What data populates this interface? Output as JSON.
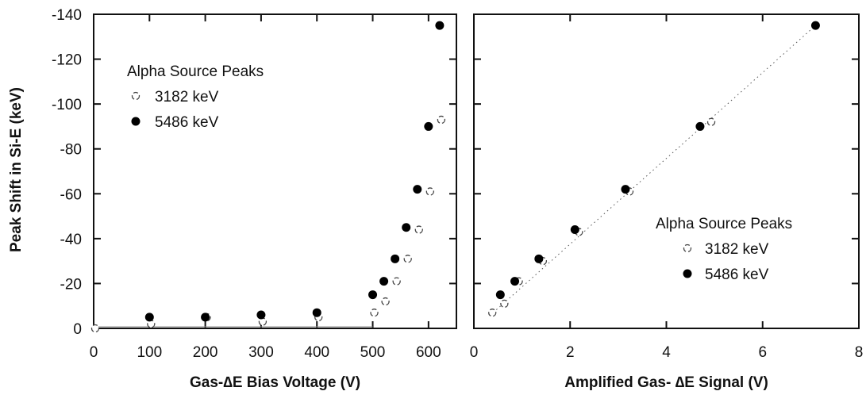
{
  "figure": {
    "ylabel": "Peak Shift in Si-E (keV)"
  },
  "chart_data": [
    {
      "type": "scatter",
      "title": "",
      "xlabel": "Gas-∆E Bias Voltage (V)",
      "ylabel": "Peak Shift in Si-E (keV)",
      "xlim": [
        0,
        650
      ],
      "ylim": [
        0,
        -140
      ],
      "y_axis_inverted": true,
      "x_ticks": [
        "0",
        "100",
        "200",
        "300",
        "400",
        "500",
        "600"
      ],
      "x_tick_values": [
        0,
        100,
        200,
        300,
        400,
        500,
        600
      ],
      "y_ticks": [
        "0",
        "-20",
        "-40",
        "-60",
        "-80",
        "-100",
        "-120",
        "-140"
      ],
      "y_tick_values": [
        0,
        -20,
        -40,
        -60,
        -80,
        -100,
        -120,
        -140
      ],
      "legend": {
        "title": "Alpha Source Peaks",
        "position": "top-left",
        "entries": [
          "3182 keV",
          "5486 keV"
        ]
      },
      "series": [
        {
          "name": "3182 keV",
          "marker": "open-circle",
          "color": "#222222",
          "points": [
            {
              "x": 0,
              "y": 0
            },
            {
              "x": 100,
              "y": -2
            },
            {
              "x": 200,
              "y": -5
            },
            {
              "x": 300,
              "y": -3
            },
            {
              "x": 400,
              "y": -5
            },
            {
              "x": 500,
              "y": -7
            },
            {
              "x": 520,
              "y": -12
            },
            {
              "x": 540,
              "y": -21
            },
            {
              "x": 560,
              "y": -31
            },
            {
              "x": 580,
              "y": -44
            },
            {
              "x": 600,
              "y": -61
            },
            {
              "x": 620,
              "y": -93
            }
          ]
        },
        {
          "name": "5486 keV",
          "marker": "filled-circle",
          "color": "#000000",
          "points": [
            {
              "x": 100,
              "y": -5
            },
            {
              "x": 200,
              "y": -5
            },
            {
              "x": 300,
              "y": -6
            },
            {
              "x": 400,
              "y": -7
            },
            {
              "x": 500,
              "y": -15
            },
            {
              "x": 520,
              "y": -21
            },
            {
              "x": 540,
              "y": -31
            },
            {
              "x": 560,
              "y": -45
            },
            {
              "x": 580,
              "y": -62
            },
            {
              "x": 600,
              "y": -90
            },
            {
              "x": 620,
              "y": -135
            }
          ]
        }
      ]
    },
    {
      "type": "scatter",
      "title": "",
      "xlabel": "Amplified Gas- ∆E Signal (V)",
      "ylabel": "",
      "xlim": [
        0,
        8
      ],
      "ylim": [
        0,
        -140
      ],
      "y_axis_inverted": true,
      "x_ticks": [
        "0",
        "2",
        "4",
        "6",
        "8"
      ],
      "x_tick_values": [
        0,
        2,
        4,
        6,
        8
      ],
      "y_tick_values": [
        0,
        -20,
        -40,
        -60,
        -80,
        -100,
        -120,
        -140
      ],
      "legend": {
        "title": "Alpha Source Peaks",
        "position": "center-right",
        "entries": [
          "3182 keV",
          "5486 keV"
        ]
      },
      "fit_line": {
        "x": [
          0.4,
          7.1
        ],
        "y": [
          -7,
          -135
        ],
        "style": "dotted"
      },
      "series": [
        {
          "name": "3182 keV",
          "marker": "open-circle",
          "color": "#222222",
          "points": [
            {
              "x": 0.35,
              "y": -7
            },
            {
              "x": 0.6,
              "y": -11
            },
            {
              "x": 0.9,
              "y": -21
            },
            {
              "x": 1.4,
              "y": -30
            },
            {
              "x": 2.15,
              "y": -43
            },
            {
              "x": 3.2,
              "y": -61
            },
            {
              "x": 4.9,
              "y": -92
            }
          ]
        },
        {
          "name": "5486 keV",
          "marker": "filled-circle",
          "color": "#000000",
          "points": [
            {
              "x": 0.55,
              "y": -15
            },
            {
              "x": 0.85,
              "y": -21
            },
            {
              "x": 1.35,
              "y": -31
            },
            {
              "x": 2.1,
              "y": -44
            },
            {
              "x": 3.15,
              "y": -62
            },
            {
              "x": 4.7,
              "y": -90
            },
            {
              "x": 7.1,
              "y": -135
            }
          ]
        }
      ]
    }
  ]
}
